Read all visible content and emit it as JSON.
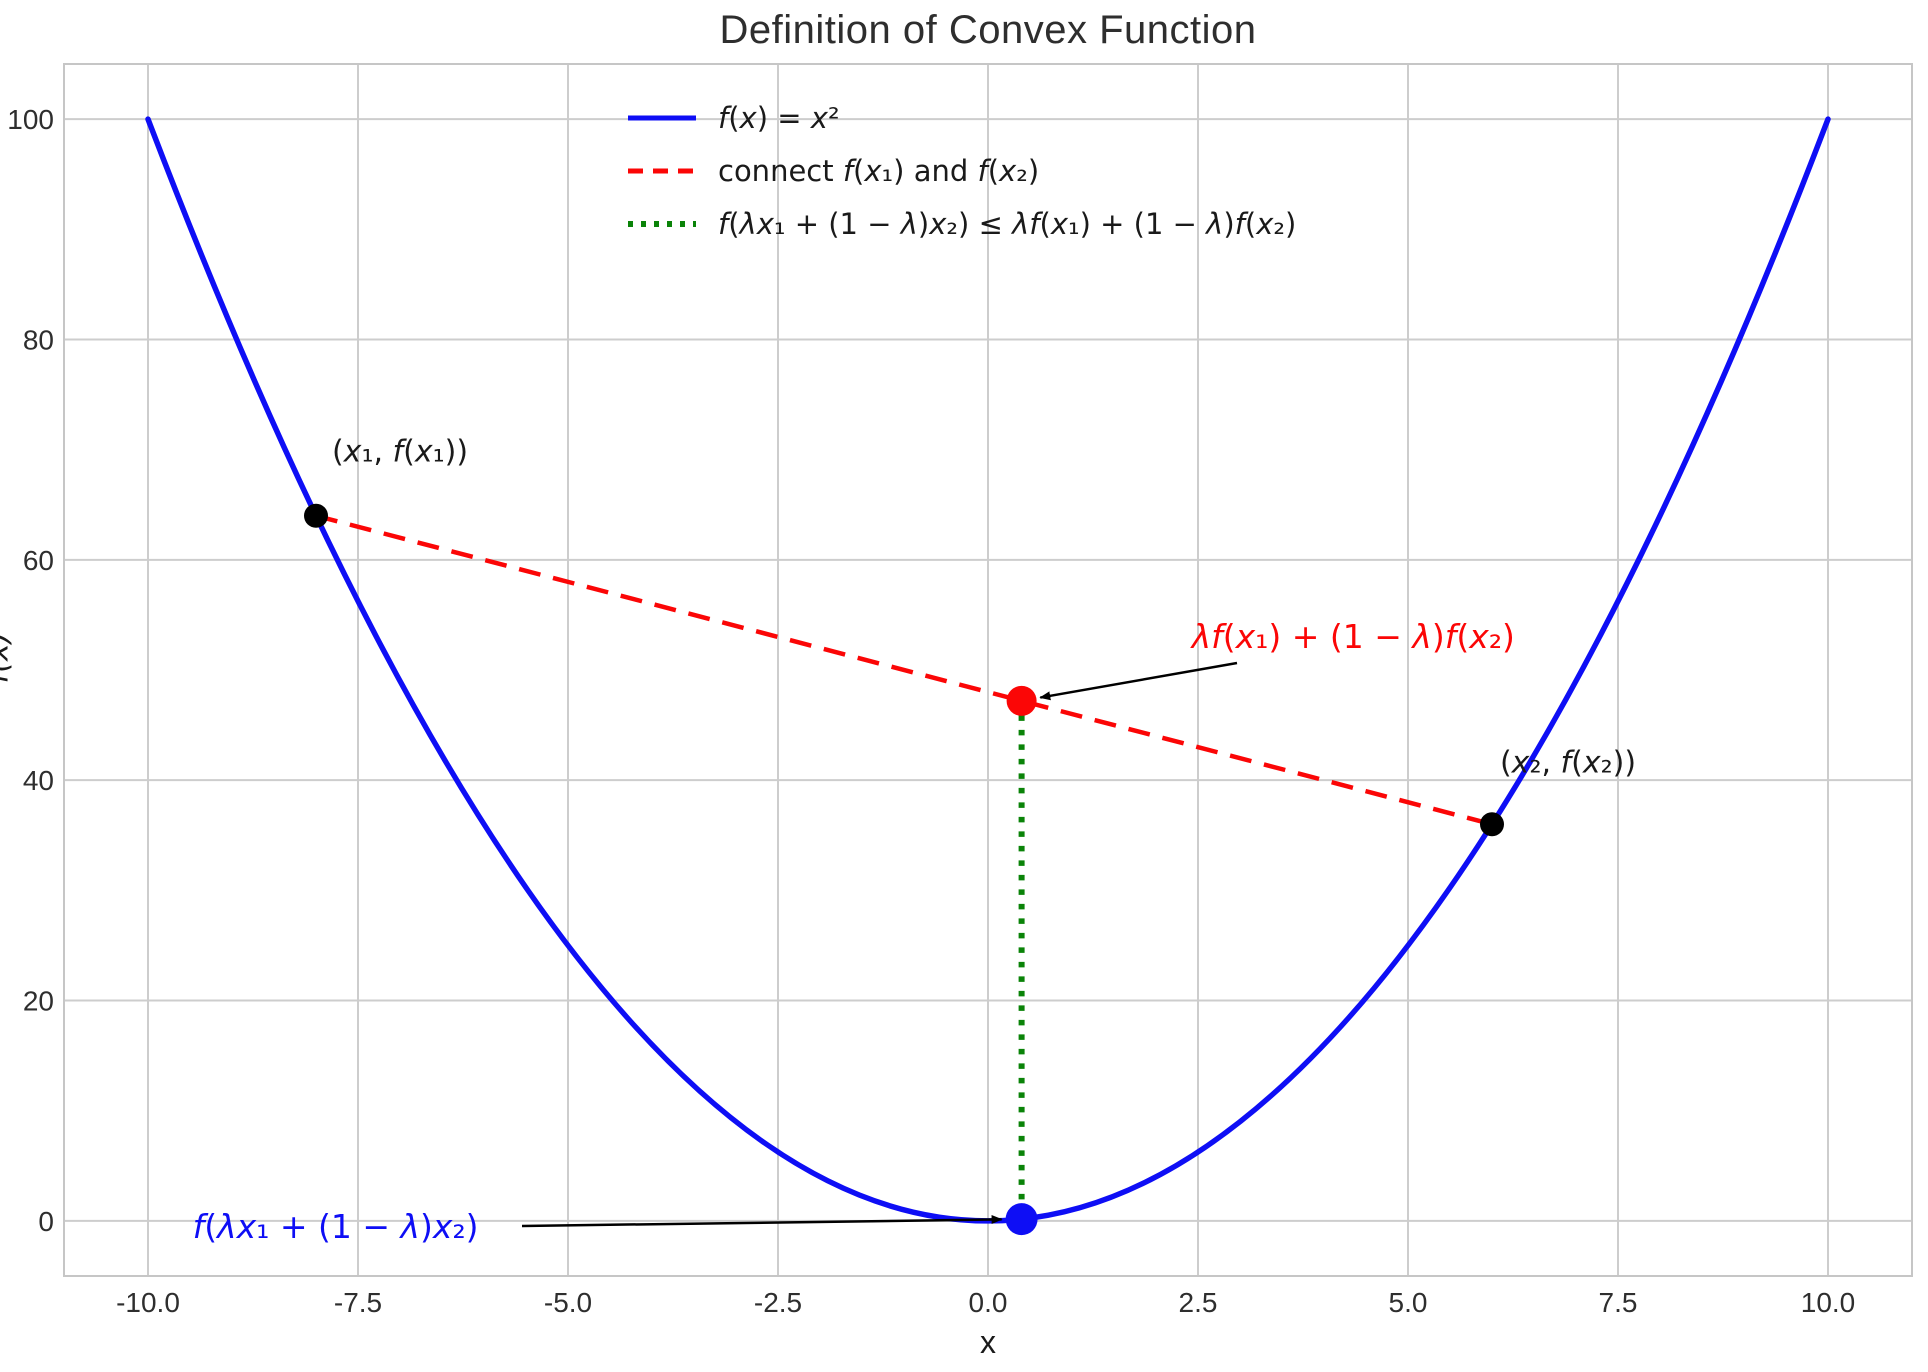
{
  "chart_data": {
    "type": "line",
    "title": "Definition of Convex Function",
    "xlabel": "x",
    "ylabel": "f(x)",
    "xlim": [
      -11,
      11
    ],
    "ylim": [
      -5,
      105
    ],
    "grid": true,
    "background": "#ffffff",
    "grid_color": "#cdcdcd",
    "frame_color": "#c6c6c6",
    "text_color": "#2e2e2e",
    "xticks": {
      "values": [
        -10,
        -7.5,
        -5,
        -2.5,
        0,
        2.5,
        5,
        7.5,
        10
      ],
      "labels": [
        "-10.0",
        "-7.5",
        "-5.0",
        "-2.5",
        "0.0",
        "2.5",
        "5.0",
        "7.5",
        "10.0"
      ]
    },
    "yticks": {
      "values": [
        0,
        20,
        40,
        60,
        80,
        100
      ],
      "labels": [
        "0",
        "20",
        "40",
        "60",
        "80",
        "100"
      ]
    },
    "curve": {
      "expr": "f(x) = x^2",
      "x_range": [
        -10,
        10
      ],
      "color": "#0e0ef5",
      "style": "solid"
    },
    "chord": {
      "from": [
        -8,
        64
      ],
      "to": [
        6,
        36
      ],
      "color": "#fb0606",
      "style": "dashed"
    },
    "vertical_segment": {
      "x": 0.4,
      "y_from": 0.16,
      "y_to": 47.2,
      "color": "#0a8308",
      "style": "dotted"
    },
    "lambda": 0.4,
    "x1": -8,
    "x2": 6,
    "points": [
      {
        "id": "point-x1",
        "x": -8,
        "y": 64,
        "color": "#000000",
        "size": 12
      },
      {
        "id": "point-x2",
        "x": 6,
        "y": 36,
        "color": "#000000",
        "size": 12
      },
      {
        "id": "interpolation-point",
        "x": 0.4,
        "y": 47.2,
        "color": "#fb0606",
        "size": 15
      },
      {
        "id": "function-value-point",
        "x": 0.4,
        "y": 0.16,
        "color": "#0e0ef5",
        "size": 16
      }
    ],
    "legend": {
      "position": "upper center-left",
      "frame": false,
      "entries": [
        {
          "label": "f(x) = x²",
          "color": "#0e0ef5",
          "style": "solid"
        },
        {
          "label": "connect f(x₁) and f(x₂)",
          "color": "#fb0606",
          "style": "dashed"
        },
        {
          "label": "f(λx₁ + (1 − λ)x₂) ≤ λf(x₁) + (1 − λ)f(x₂)",
          "color": "#0a8308",
          "style": "dotted"
        }
      ]
    },
    "annotations": [
      {
        "id": "x1-point-label",
        "text": "(x₁, f(x₁))",
        "target": [
          -8,
          64
        ],
        "color": "#1a1a1a",
        "arrow": false
      },
      {
        "id": "x2-point-label",
        "text": "(x₂, f(x₂))",
        "target": [
          6,
          36
        ],
        "color": "#1a1a1a",
        "arrow": false
      },
      {
        "id": "interpolation-label",
        "text": "λf(x₁) + (1 − λ)f(x₂)",
        "target": [
          0.4,
          47.2
        ],
        "color": "#fb0606",
        "arrow": true
      },
      {
        "id": "function-value-label",
        "text": "f(λx₁ + (1 − λ)x₂)",
        "target": [
          0.4,
          0.16
        ],
        "color": "#0e0ef5",
        "arrow": true
      }
    ]
  }
}
